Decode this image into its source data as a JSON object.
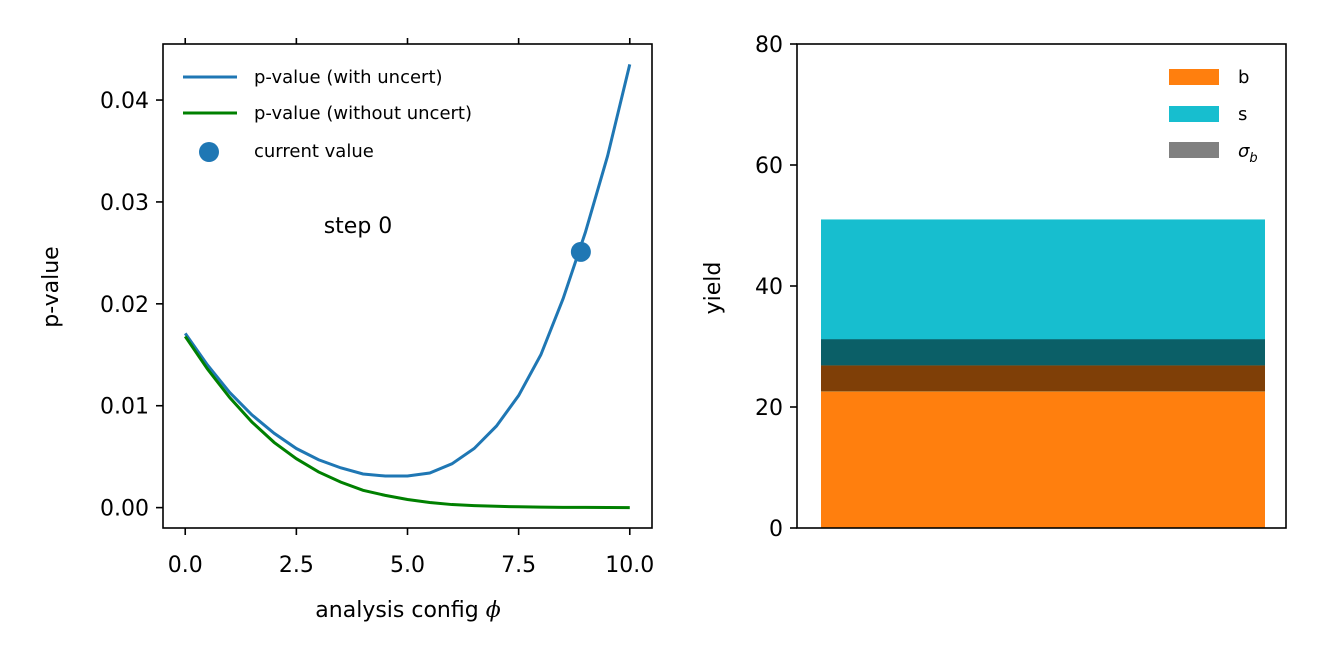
{
  "chart_data": [
    {
      "type": "line",
      "title": "",
      "xlabel": "analysis config",
      "xlabel_symbol": "ϕ",
      "ylabel": "p-value",
      "xlim": [
        -0.5,
        10.5
      ],
      "ylim": [
        -0.002,
        0.0455
      ],
      "xticks": [
        0,
        2.5,
        5,
        7.5,
        10
      ],
      "xtick_labels": [
        "0.0",
        "2.5",
        "5.0",
        "7.5",
        "10.0"
      ],
      "yticks": [
        0,
        0.01,
        0.02,
        0.03,
        0.04
      ],
      "ytick_labels": [
        "0.00",
        "0.01",
        "0.02",
        "0.03",
        "0.04"
      ],
      "grid": false,
      "legend_position": "upper-left",
      "annotation": "step 0",
      "series": [
        {
          "name": "p-value (with uncert)",
          "color": "#1f77b4",
          "x": [
            0,
            0.5,
            1,
            1.5,
            2,
            2.5,
            3,
            3.5,
            4,
            4.5,
            5,
            5.5,
            6,
            6.5,
            7,
            7.5,
            8,
            8.5,
            9,
            9.5,
            10
          ],
          "y": [
            0.0171,
            0.014,
            0.0113,
            0.0091,
            0.0073,
            0.0058,
            0.0047,
            0.0039,
            0.0033,
            0.0031,
            0.0031,
            0.0034,
            0.0043,
            0.0058,
            0.008,
            0.011,
            0.015,
            0.0205,
            0.027,
            0.0345,
            0.0435
          ]
        },
        {
          "name": "p-value (without uncert)",
          "color": "#008000",
          "x": [
            0,
            0.5,
            1,
            1.5,
            2,
            2.5,
            3,
            3.5,
            4,
            4.5,
            5,
            5.5,
            6,
            6.5,
            7,
            7.5,
            8,
            8.5,
            9,
            9.5,
            10
          ],
          "y": [
            0.0168,
            0.0136,
            0.0108,
            0.0084,
            0.0064,
            0.0048,
            0.0035,
            0.0025,
            0.0017,
            0.0012,
            0.0008,
            0.0005,
            0.0003,
            0.0002,
            0.00013,
            8e-05,
            5e-05,
            3e-05,
            2e-05,
            1e-05,
            0.0
          ]
        }
      ],
      "marker": {
        "name": "current value",
        "color": "#1f77b4",
        "x": 8.9,
        "y": 0.0251
      }
    },
    {
      "type": "bar",
      "title": "",
      "xlabel": "",
      "ylabel": "yield",
      "ylim": [
        0,
        80
      ],
      "yticks": [
        0,
        20,
        40,
        60,
        80
      ],
      "ytick_labels": [
        "0",
        "20",
        "40",
        "60",
        "80"
      ],
      "grid": false,
      "legend_position": "upper-right",
      "b": 22.6,
      "s": 28.4,
      "sigma_b": 4.3,
      "series": [
        {
          "name": "b",
          "color": "#ff7f0e"
        },
        {
          "name": "s",
          "color": "#17becf"
        },
        {
          "name": "σ",
          "name_subscript": "b",
          "color": "#808080"
        }
      ],
      "overlap_colors": {
        "with_b": "#7f3f07",
        "with_s": "#0b5f67"
      }
    }
  ]
}
